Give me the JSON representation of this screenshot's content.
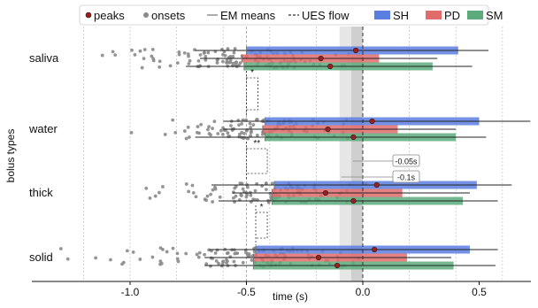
{
  "chart_data": {
    "type": "bar",
    "orientation": "horizontal",
    "xlabel": "time (s)",
    "ylabel": "bolus types",
    "xlim": [
      -1.4,
      0.75
    ],
    "x_ticks": [
      -1.0,
      -0.5,
      0.0,
      0.5
    ],
    "x_tick_labels": [
      "-1.0",
      "-0.5",
      "0.0",
      "0.5"
    ],
    "categories": [
      "saliva",
      "water",
      "thick",
      "solid"
    ],
    "grid": "vertical dotted",
    "legend": {
      "position": "top",
      "items": [
        {
          "label": "peaks",
          "kind": "marker",
          "color": "#a01d1d"
        },
        {
          "label": "onsets",
          "kind": "dot",
          "color": "#8a8a8a"
        },
        {
          "label": "EM means",
          "kind": "line",
          "color": "#777777"
        },
        {
          "label": "UES flow",
          "kind": "dashed",
          "color": "#333333"
        },
        {
          "label": "SH",
          "kind": "patch",
          "color": "#5b7fe0"
        },
        {
          "label": "PD",
          "kind": "patch",
          "color": "#e26b6b"
        },
        {
          "label": "SM",
          "kind": "patch",
          "color": "#5dab7d"
        }
      ]
    },
    "series": [
      {
        "name": "SH",
        "color": "#5b7fe0",
        "start": [
          -0.5,
          -0.42,
          -0.38,
          -0.46
        ],
        "end": [
          0.41,
          0.5,
          0.49,
          0.46
        ],
        "peak": [
          -0.03,
          0.04,
          0.06,
          0.05
        ],
        "err": [
          [
            -0.72,
            0.54
          ],
          [
            -0.6,
            0.72
          ],
          [
            -0.65,
            0.64
          ],
          [
            -0.66,
            0.58
          ]
        ]
      },
      {
        "name": "PD",
        "color": "#e26b6b",
        "start": [
          -0.52,
          -0.43,
          -0.39,
          -0.47
        ],
        "end": [
          0.07,
          0.15,
          0.17,
          0.19
        ],
        "peak": [
          -0.18,
          -0.15,
          -0.16,
          -0.19
        ],
        "err": [
          [
            -0.7,
            0.32
          ],
          [
            -0.6,
            0.4
          ],
          [
            -0.56,
            0.46
          ],
          [
            -0.68,
            0.38
          ]
        ]
      },
      {
        "name": "SM",
        "color": "#5dab7d",
        "start": [
          -0.51,
          -0.42,
          -0.39,
          -0.47
        ],
        "end": [
          0.3,
          0.4,
          0.43,
          0.39
        ],
        "peak": [
          -0.14,
          -0.04,
          -0.04,
          -0.11
        ],
        "err": [
          [
            -0.76,
            0.47
          ],
          [
            -0.72,
            0.53
          ],
          [
            -0.62,
            0.58
          ],
          [
            -0.68,
            0.57
          ]
        ]
      }
    ],
    "ues_flow": {
      "x": 0.0,
      "band": [
        -0.1,
        -0.05
      ]
    },
    "annotations": [
      {
        "text": "-0.05s",
        "x": -0.05,
        "row_between": [
          1,
          2
        ],
        "offset": 0.5
      },
      {
        "text": "-0.1s",
        "x": -0.1,
        "row_between": [
          1,
          2
        ],
        "offset": 0.75
      }
    ],
    "significance": [
      {
        "between": [
          0,
          1
        ],
        "label": "*",
        "x_left": -0.5,
        "x_right": -0.42
      },
      {
        "between": [
          1,
          2
        ],
        "label": "**",
        "x_left": -0.5,
        "x_right": -0.38
      },
      {
        "between": [
          2,
          3
        ],
        "label": "*",
        "x_left": -0.46,
        "x_right": -0.38
      }
    ],
    "onsets": [
      {
        "center": -0.52,
        "spread": 0.26,
        "min": -1.12,
        "count": 120
      },
      {
        "center": -0.42,
        "spread": 0.22,
        "min": -1.03,
        "count": 110
      },
      {
        "center": -0.4,
        "spread": 0.24,
        "min": -1.0,
        "count": 110
      },
      {
        "center": -0.47,
        "spread": 0.3,
        "min": -1.3,
        "count": 120
      }
    ]
  }
}
